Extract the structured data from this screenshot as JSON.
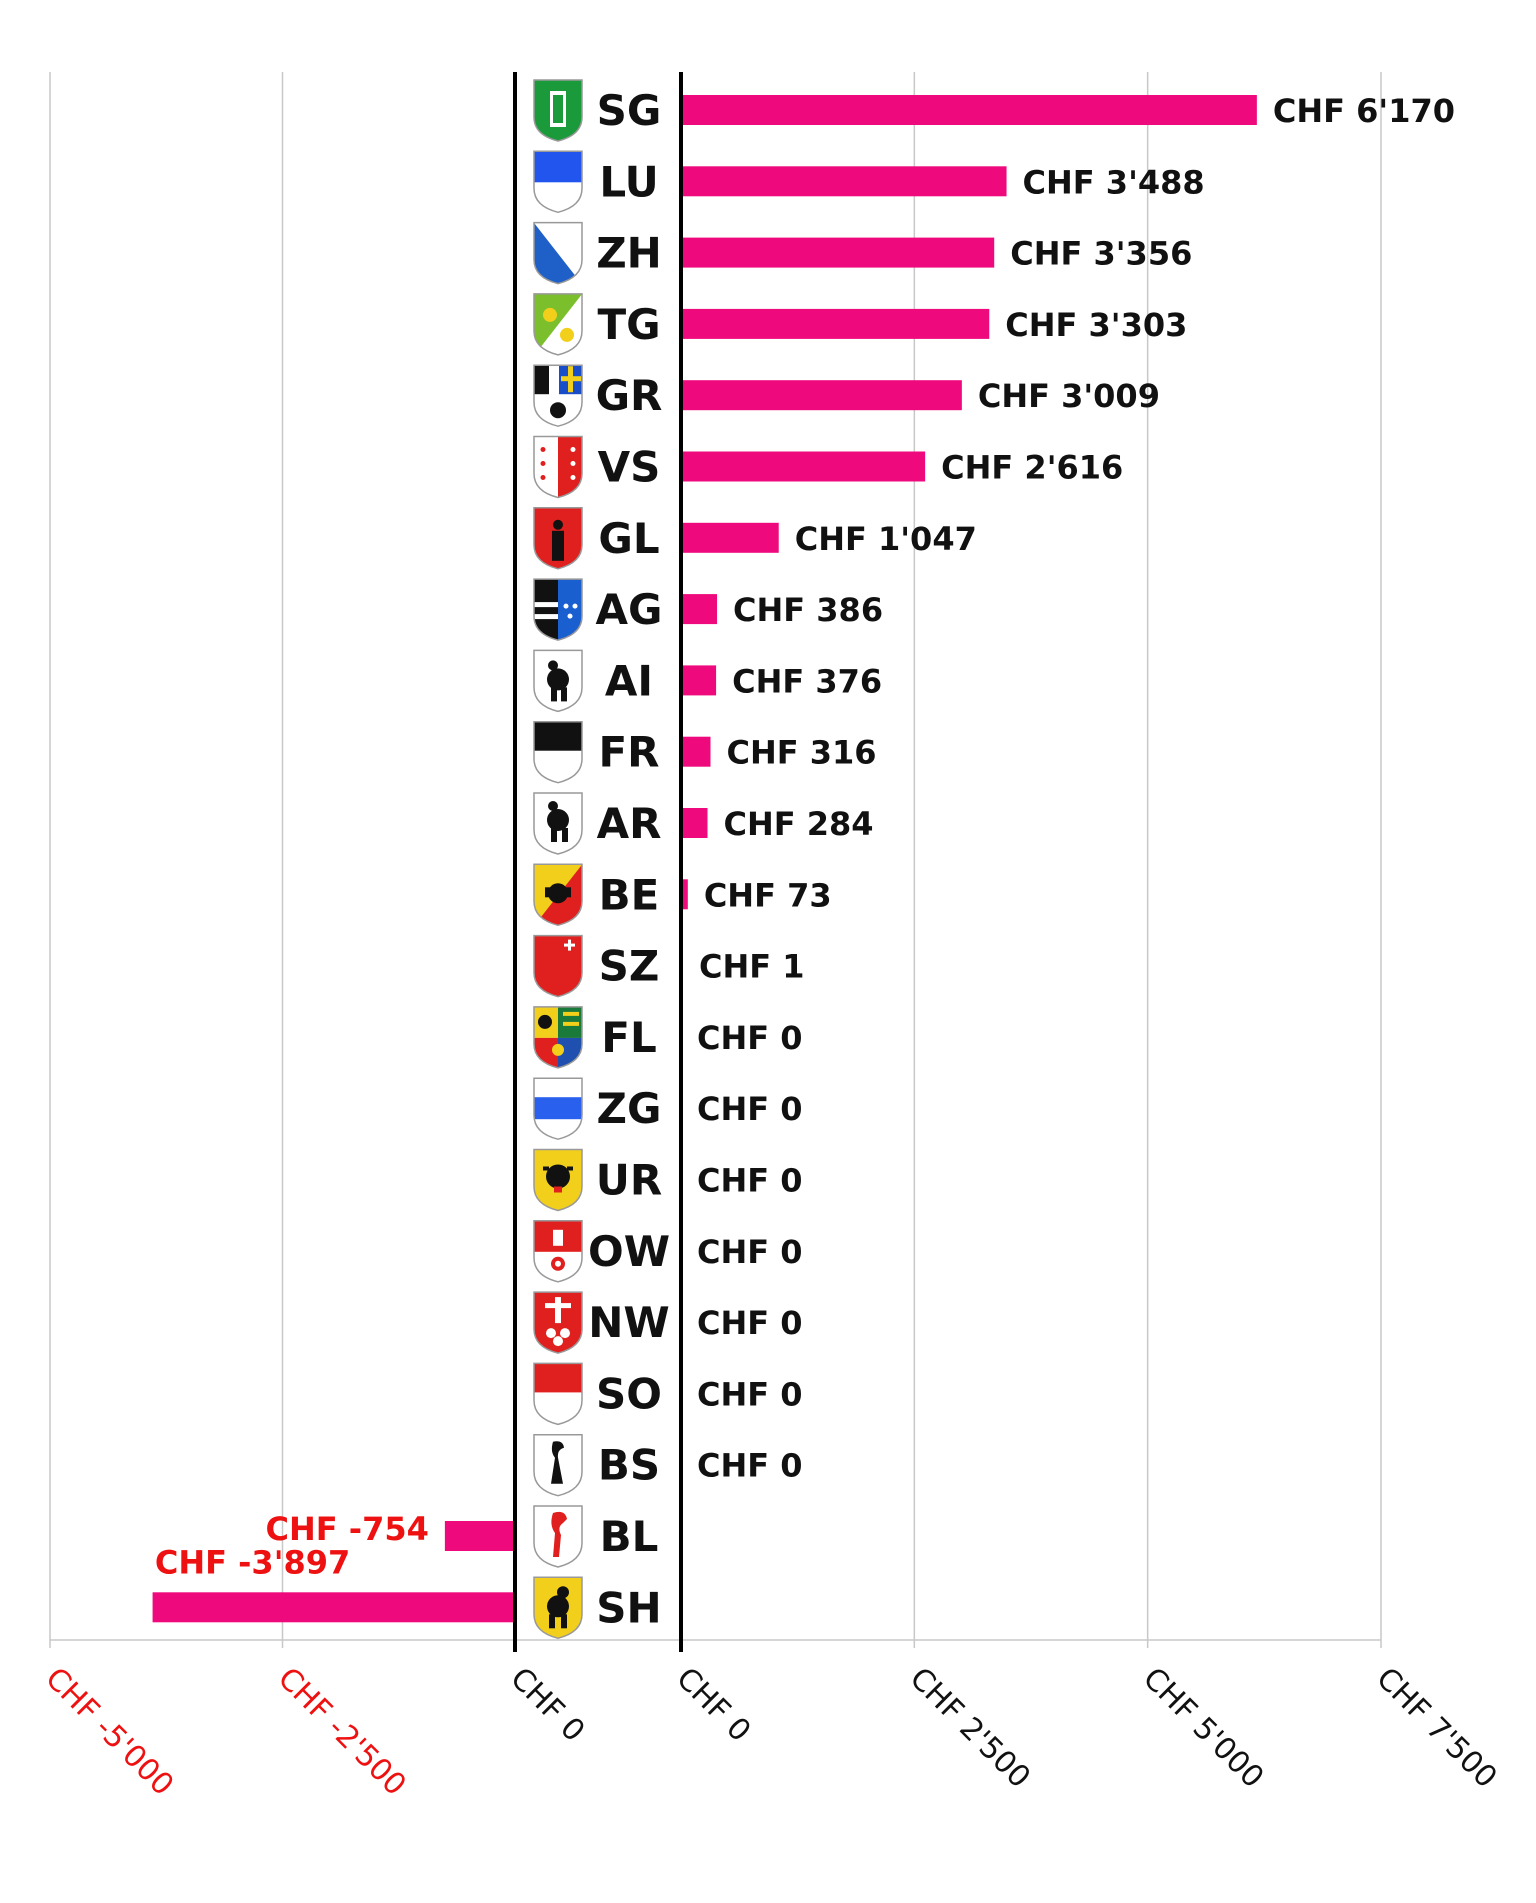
{
  "chart_data": {
    "type": "bar",
    "orientation": "horizontal",
    "categories": [
      "SG",
      "LU",
      "ZH",
      "TG",
      "GR",
      "VS",
      "GL",
      "AG",
      "AI",
      "FR",
      "AR",
      "BE",
      "SZ",
      "FL",
      "ZG",
      "UR",
      "OW",
      "NW",
      "SO",
      "BS",
      "BL",
      "SH"
    ],
    "values": [
      6170,
      3488,
      3356,
      3303,
      3009,
      2616,
      1047,
      386,
      376,
      316,
      284,
      73,
      1,
      0,
      0,
      0,
      0,
      0,
      0,
      0,
      -754,
      -3897
    ],
    "labels": [
      "CHF 6'170",
      "CHF 3'488",
      "CHF 3'356",
      "CHF 3'303",
      "CHF 3'009",
      "CHF 2'616",
      "CHF 1'047",
      "CHF 386",
      "CHF 376",
      "CHF 316",
      "CHF 284",
      "CHF 73",
      "CHF 1",
      "CHF 0",
      "CHF 0",
      "CHF 0",
      "CHF 0",
      "CHF 0",
      "CHF 0",
      "CHF 0",
      "CHF -754",
      "CHF -3'897"
    ],
    "positive_axis": {
      "range": [
        0,
        7500
      ],
      "ticks": [
        0,
        2500,
        5000,
        7500
      ],
      "tick_labels": [
        "CHF 0",
        "CHF 2'500",
        "CHF 5'000",
        "CHF 7'500"
      ]
    },
    "negative_axis": {
      "range": [
        -5000,
        0
      ],
      "ticks": [
        -5000,
        -2500,
        0
      ],
      "tick_labels": [
        "CHF -5'000",
        "CHF -2'500",
        "CHF 0"
      ]
    },
    "grid": true,
    "title": "",
    "xlabel": "",
    "ylabel": ""
  },
  "colors": {
    "bar": "#ee0a7c",
    "negative_text": "#ee1111",
    "text": "#111111",
    "grid": "#c8c8c8",
    "axis": "#000000"
  },
  "icons": [
    "sg-coat-of-arms-icon",
    "lu-coat-of-arms-icon",
    "zh-coat-of-arms-icon",
    "tg-coat-of-arms-icon",
    "gr-coat-of-arms-icon",
    "vs-coat-of-arms-icon",
    "gl-coat-of-arms-icon",
    "ag-coat-of-arms-icon",
    "ai-coat-of-arms-icon",
    "fr-coat-of-arms-icon",
    "ar-coat-of-arms-icon",
    "be-coat-of-arms-icon",
    "sz-coat-of-arms-icon",
    "fl-coat-of-arms-icon",
    "zg-coat-of-arms-icon",
    "ur-coat-of-arms-icon",
    "ow-coat-of-arms-icon",
    "nw-coat-of-arms-icon",
    "so-coat-of-arms-icon",
    "bs-coat-of-arms-icon",
    "bl-coat-of-arms-icon",
    "sh-coat-of-arms-icon"
  ]
}
